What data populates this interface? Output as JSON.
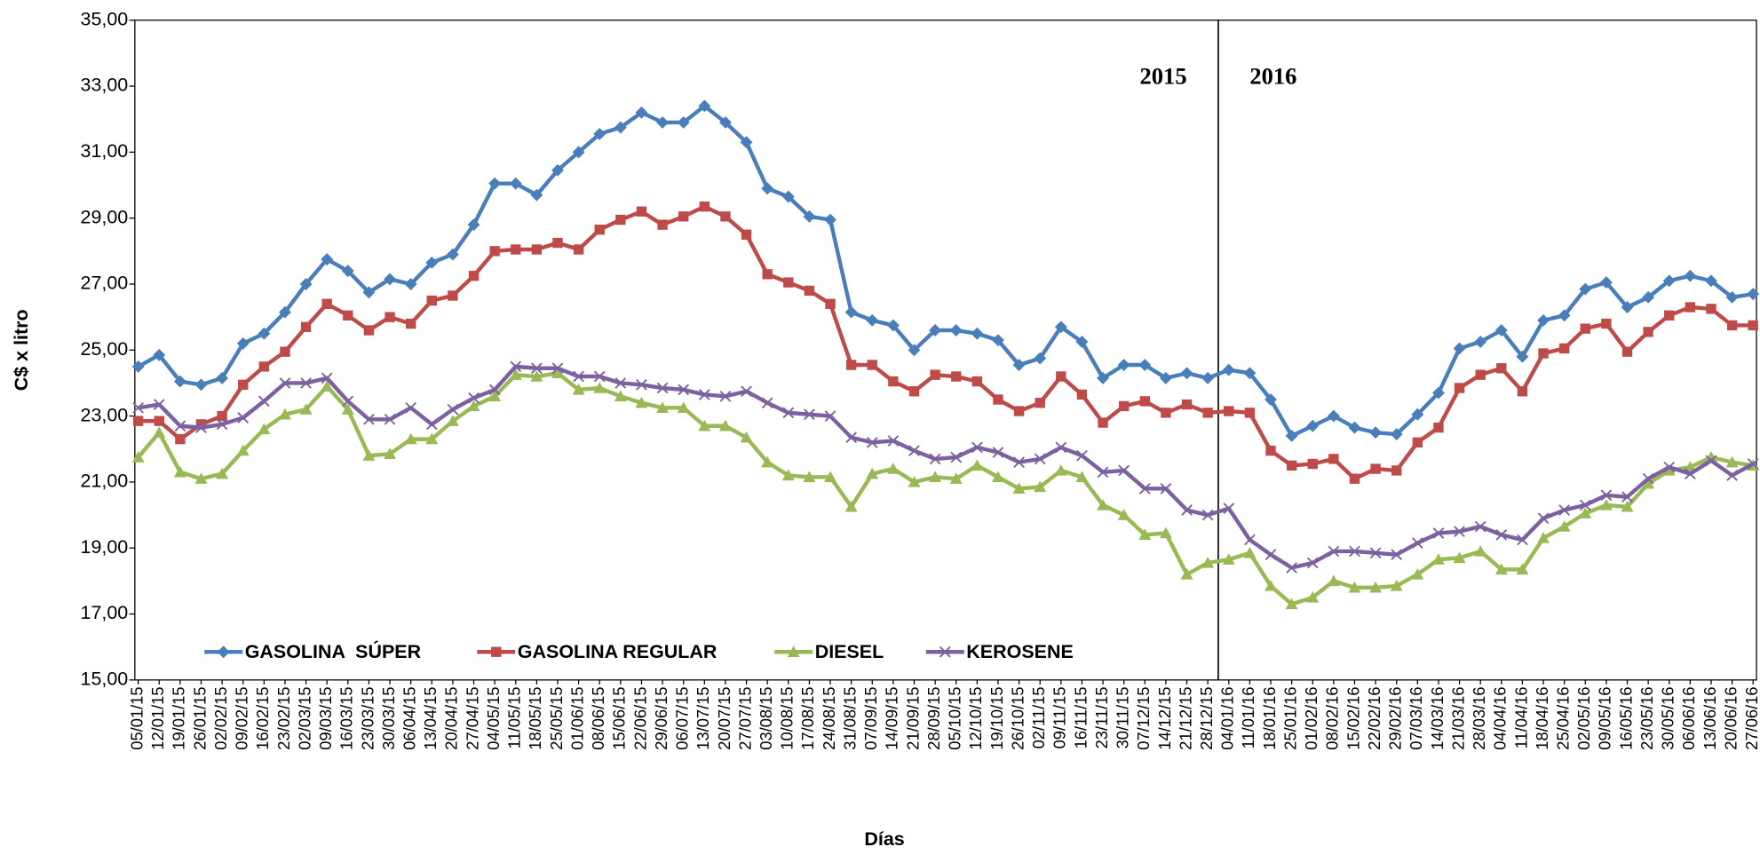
{
  "chart_data": {
    "type": "line",
    "y_label": "C$ x litro",
    "x_label": "Días",
    "annotations": [
      "2015",
      "2016"
    ],
    "categories": [
      "05/01/15",
      "12/01/15",
      "19/01/15",
      "26/01/15",
      "02/02/15",
      "09/02/15",
      "16/02/15",
      "23/02/15",
      "02/03/15",
      "09/03/15",
      "16/03/15",
      "23/03/15",
      "30/03/15",
      "06/04/15",
      "13/04/15",
      "20/04/15",
      "27/04/15",
      "04/05/15",
      "11/05/15",
      "18/05/15",
      "25/05/15",
      "01/06/15",
      "08/06/15",
      "15/06/15",
      "22/06/15",
      "29/06/15",
      "06/07/15",
      "13/07/15",
      "20/07/15",
      "27/07/15",
      "03/08/15",
      "10/08/15",
      "17/08/15",
      "24/08/15",
      "31/08/15",
      "07/09/15",
      "14/09/15",
      "21/09/15",
      "28/09/15",
      "05/10/15",
      "12/10/15",
      "19/10/15",
      "26/10/15",
      "02/11/15",
      "09/11/15",
      "16/11/15",
      "23/11/15",
      "30/11/15",
      "07/12/15",
      "14/12/15",
      "21/12/15",
      "28/12/15",
      "04/01/16",
      "11/01/16",
      "18/01/16",
      "25/01/16",
      "01/02/16",
      "08/02/16",
      "15/02/16",
      "22/02/16",
      "29/02/16",
      "07/03/16",
      "14/03/16",
      "21/03/16",
      "28/03/16",
      "04/04/16",
      "11/04/16",
      "18/04/16",
      "25/04/16",
      "02/05/16",
      "09/05/16",
      "16/05/16",
      "23/05/16",
      "30/05/16",
      "06/06/16",
      "13/06/16",
      "20/06/16",
      "27/06/16"
    ],
    "series": [
      {
        "name": "GASOLINA  SÚPER",
        "color": "#4a7ebb",
        "marker": "diamond",
        "values": [
          24.5,
          24.85,
          24.05,
          23.95,
          24.15,
          25.2,
          25.5,
          26.15,
          27.0,
          27.75,
          27.4,
          26.75,
          27.15,
          27.0,
          27.65,
          27.9,
          28.8,
          30.05,
          30.05,
          29.7,
          30.45,
          31.0,
          31.55,
          31.75,
          32.2,
          31.9,
          31.9,
          32.4,
          31.9,
          31.3,
          29.9,
          29.65,
          29.05,
          28.95,
          26.15,
          25.9,
          25.75,
          25.0,
          25.6,
          25.6,
          25.5,
          25.3,
          24.55,
          24.75,
          25.7,
          25.25,
          24.15,
          24.55,
          24.55,
          24.15,
          24.3,
          24.15,
          24.4,
          24.3,
          23.5,
          22.4,
          22.7,
          23.0,
          22.65,
          22.5,
          22.45,
          23.05,
          23.7,
          25.05,
          25.25,
          25.6,
          24.8,
          25.9,
          26.05,
          26.85,
          27.05,
          26.3,
          26.6,
          27.1,
          27.25,
          27.1,
          26.6,
          26.7
        ]
      },
      {
        "name": "GASOLINA REGULAR",
        "color": "#be4b48",
        "marker": "square",
        "values": [
          22.85,
          22.85,
          22.3,
          22.75,
          23.0,
          23.95,
          24.5,
          24.95,
          25.7,
          26.4,
          26.05,
          25.6,
          26.0,
          25.8,
          26.5,
          26.65,
          27.25,
          28.0,
          28.05,
          28.05,
          28.25,
          28.05,
          28.65,
          28.95,
          29.2,
          28.8,
          29.05,
          29.35,
          29.05,
          28.5,
          27.3,
          27.05,
          26.8,
          26.4,
          24.55,
          24.55,
          24.05,
          23.75,
          24.25,
          24.2,
          24.05,
          23.5,
          23.15,
          23.4,
          24.2,
          23.65,
          22.8,
          23.3,
          23.45,
          23.1,
          23.35,
          23.1,
          23.15,
          23.1,
          21.95,
          21.5,
          21.55,
          21.7,
          21.1,
          21.4,
          21.35,
          22.2,
          22.65,
          23.85,
          24.25,
          24.45,
          23.75,
          24.9,
          25.05,
          25.65,
          25.8,
          24.95,
          25.55,
          26.05,
          26.3,
          26.25,
          25.75,
          25.75
        ]
      },
      {
        "name": "DIESEL",
        "color": "#98b954",
        "marker": "triangle",
        "values": [
          21.75,
          22.5,
          21.3,
          21.1,
          21.25,
          21.95,
          22.6,
          23.05,
          23.2,
          23.9,
          23.2,
          21.8,
          21.85,
          22.3,
          22.3,
          22.85,
          23.3,
          23.6,
          24.25,
          24.2,
          24.3,
          23.8,
          23.85,
          23.6,
          23.4,
          23.25,
          23.25,
          22.7,
          22.7,
          22.35,
          21.6,
          21.2,
          21.15,
          21.15,
          20.25,
          21.25,
          21.4,
          21.0,
          21.15,
          21.1,
          21.5,
          21.15,
          20.8,
          20.85,
          21.35,
          21.15,
          20.3,
          20.0,
          19.4,
          19.45,
          18.2,
          18.55,
          18.65,
          18.85,
          17.85,
          17.3,
          17.5,
          18.0,
          17.8,
          17.8,
          17.85,
          18.2,
          18.65,
          18.7,
          18.9,
          18.35,
          18.35,
          19.3,
          19.65,
          20.05,
          20.3,
          20.25,
          20.95,
          21.35,
          21.45,
          21.75,
          21.6,
          21.5
        ]
      },
      {
        "name": "KEROSENE",
        "color": "#7d60a0",
        "marker": "x",
        "values": [
          23.25,
          23.35,
          22.7,
          22.65,
          22.75,
          22.95,
          23.45,
          24.0,
          24.0,
          24.15,
          23.45,
          22.9,
          22.9,
          23.25,
          22.75,
          23.2,
          23.55,
          23.8,
          24.5,
          24.45,
          24.45,
          24.2,
          24.2,
          24.0,
          23.95,
          23.85,
          23.8,
          23.65,
          23.6,
          23.75,
          23.4,
          23.1,
          23.05,
          23.0,
          22.35,
          22.2,
          22.25,
          21.95,
          21.7,
          21.75,
          22.05,
          21.9,
          21.6,
          21.7,
          22.05,
          21.8,
          21.3,
          21.35,
          20.8,
          20.8,
          20.15,
          20.0,
          20.2,
          19.25,
          18.8,
          18.4,
          18.55,
          18.9,
          18.9,
          18.85,
          18.8,
          19.15,
          19.45,
          19.5,
          19.65,
          19.4,
          19.25,
          19.9,
          20.15,
          20.3,
          20.6,
          20.55,
          21.1,
          21.45,
          21.25,
          21.65,
          21.2,
          21.55
        ]
      }
    ],
    "ylim": [
      15,
      35
    ],
    "yticks": [
      {
        "value": 15,
        "label": "15,00"
      },
      {
        "value": 17,
        "label": "17,00"
      },
      {
        "value": 19,
        "label": "19,00"
      },
      {
        "value": 21,
        "label": "21,00"
      },
      {
        "value": 23,
        "label": "23,00"
      },
      {
        "value": 25,
        "label": "25,00"
      },
      {
        "value": 27,
        "label": "27,00"
      },
      {
        "value": 29,
        "label": "29,00"
      },
      {
        "value": 31,
        "label": "31,00"
      },
      {
        "value": 33,
        "label": "33,00"
      },
      {
        "value": 35,
        "label": "35,00"
      }
    ],
    "grid": false,
    "legend": "lower left"
  }
}
